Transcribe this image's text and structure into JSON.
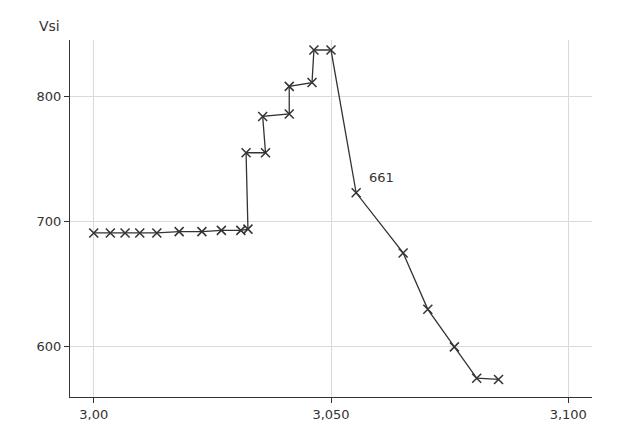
{
  "chart_data": {
    "type": "line",
    "ylabel": "Vsi",
    "x": [
      3.0,
      3.0035,
      3.0066,
      3.0097,
      3.0133,
      3.018,
      3.0228,
      3.0269,
      3.031,
      3.0325,
      3.0321,
      3.0362,
      3.0356,
      3.0412,
      3.0412,
      3.046,
      3.0464,
      3.05,
      3.0553,
      3.0652,
      3.0704,
      3.076,
      3.0807,
      3.0853
    ],
    "values": [
      691,
      691,
      691,
      691,
      691,
      692,
      692,
      693,
      693,
      694,
      755,
      755,
      784,
      786,
      808,
      811,
      837,
      837,
      723,
      675,
      630,
      600,
      575,
      574
    ],
    "color": "#333333",
    "marker": "x",
    "line_style": "solid",
    "xlim": [
      2.995,
      3.105
    ],
    "xticks": [
      {
        "value": 3.0,
        "label": "3,00"
      },
      {
        "value": 3.05,
        "label": "3,050"
      },
      {
        "value": 3.1,
        "label": "3,100"
      }
    ],
    "ylim": [
      560,
      845
    ],
    "yticks": [
      600,
      700,
      800
    ],
    "annotations": [
      {
        "x": 3.0575,
        "y": 728,
        "text": "661"
      }
    ],
    "grid": true
  }
}
